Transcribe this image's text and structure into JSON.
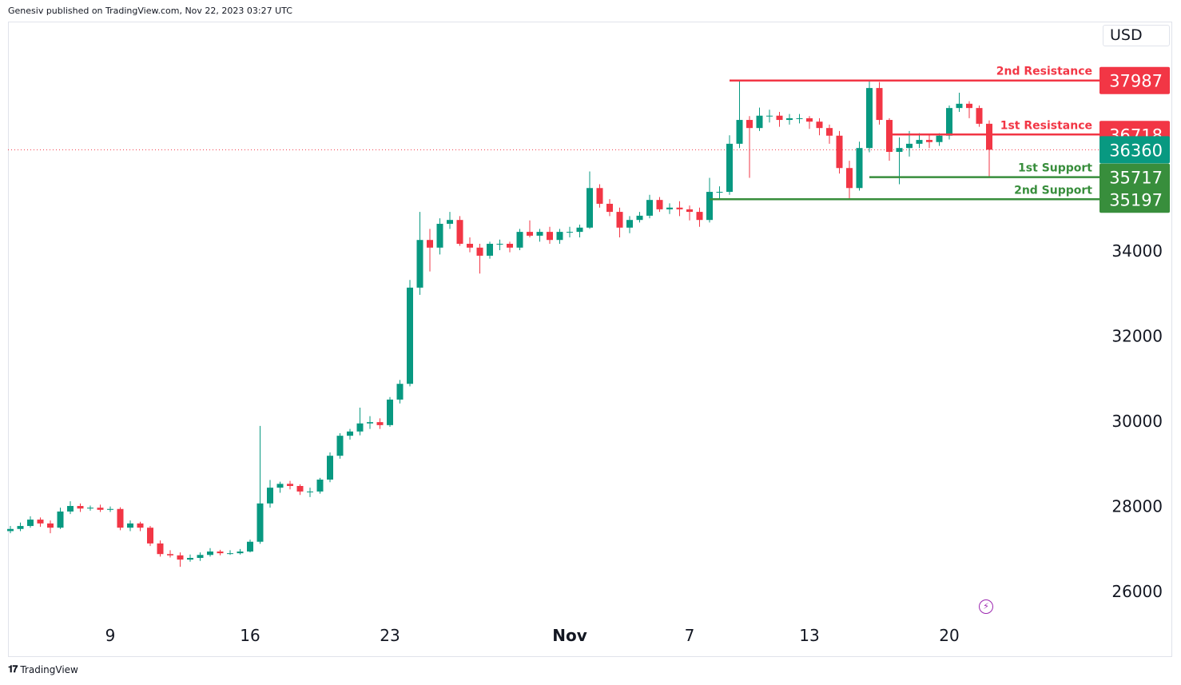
{
  "header": {
    "published": "Genesiv published on TradingView.com, Nov 22, 2023 03:27 UTC"
  },
  "currency": "USD",
  "footer": {
    "brand": "TradingView"
  },
  "colors": {
    "up": "#089981",
    "down": "#F23645",
    "resistance": "#F23645",
    "support": "#388E3C",
    "last_price": "#089981"
  },
  "chart_data": {
    "type": "candlestick",
    "x_start": "2023-10-04",
    "interval": "12h",
    "x_ticks": [
      {
        "label": "9",
        "date": "2023-10-09"
      },
      {
        "label": "16",
        "date": "2023-10-16"
      },
      {
        "label": "23",
        "date": "2023-10-23"
      },
      {
        "label": "Nov",
        "date": "2023-11-01"
      },
      {
        "label": "7",
        "date": "2023-11-07"
      },
      {
        "label": "13",
        "date": "2023-11-13"
      },
      {
        "label": "20",
        "date": "2023-11-20"
      }
    ],
    "y_ticks": [
      26000,
      28000,
      30000,
      32000,
      34000
    ],
    "ylim": [
      25000,
      38500
    ],
    "last_price": 36360,
    "levels": [
      {
        "name": "2nd Resistance",
        "value": 37987,
        "kind": "resistance",
        "from": "2023-11-09"
      },
      {
        "name": "1st Resistance",
        "value": 36718,
        "kind": "resistance",
        "from": "2023-11-17"
      },
      {
        "name": "1st Support",
        "value": 35717,
        "kind": "support",
        "from": "2023-11-16"
      },
      {
        "name": "2nd Support",
        "value": 35197,
        "kind": "support",
        "from": "2023-11-08"
      }
    ],
    "ohlc": [
      [
        27400,
        27520,
        27350,
        27450
      ],
      [
        27450,
        27600,
        27400,
        27520
      ],
      [
        27520,
        27750,
        27480,
        27670
      ],
      [
        27670,
        27720,
        27500,
        27580
      ],
      [
        27580,
        27650,
        27350,
        27480
      ],
      [
        27480,
        27950,
        27450,
        27860
      ],
      [
        27860,
        28100,
        27800,
        27990
      ],
      [
        27990,
        28050,
        27850,
        27930
      ],
      [
        27930,
        28000,
        27880,
        27950
      ],
      [
        27950,
        28020,
        27850,
        27900
      ],
      [
        27900,
        27980,
        27850,
        27920
      ],
      [
        27920,
        27960,
        27420,
        27480
      ],
      [
        27480,
        27650,
        27400,
        27580
      ],
      [
        27580,
        27620,
        27400,
        27480
      ],
      [
        27480,
        27520,
        27050,
        27110
      ],
      [
        27110,
        27180,
        26800,
        26860
      ],
      [
        26860,
        26950,
        26780,
        26830
      ],
      [
        26830,
        26900,
        26560,
        26730
      ],
      [
        26730,
        26850,
        26680,
        26770
      ],
      [
        26770,
        26900,
        26700,
        26840
      ],
      [
        26840,
        27000,
        26800,
        26920
      ],
      [
        26920,
        26960,
        26830,
        26880
      ],
      [
        26880,
        26950,
        26840,
        26880
      ],
      [
        26880,
        26980,
        26850,
        26920
      ],
      [
        26920,
        27200,
        26900,
        27150
      ],
      [
        27150,
        29870,
        27100,
        28050
      ],
      [
        28050,
        28600,
        27950,
        28420
      ],
      [
        28420,
        28560,
        28300,
        28510
      ],
      [
        28510,
        28580,
        28380,
        28460
      ],
      [
        28460,
        28500,
        28250,
        28330
      ],
      [
        28330,
        28420,
        28200,
        28330
      ],
      [
        28330,
        28650,
        28280,
        28610
      ],
      [
        28610,
        29250,
        28550,
        29170
      ],
      [
        29170,
        29700,
        29100,
        29640
      ],
      [
        29640,
        29800,
        29550,
        29740
      ],
      [
        29740,
        30300,
        29650,
        29930
      ],
      [
        29930,
        30100,
        29800,
        29960
      ],
      [
        29960,
        30050,
        29800,
        29890
      ],
      [
        29890,
        30550,
        29850,
        30490
      ],
      [
        30490,
        30950,
        30400,
        30860
      ],
      [
        30860,
        33300,
        30800,
        33120
      ],
      [
        33120,
        34900,
        32950,
        34240
      ],
      [
        34240,
        34500,
        33500,
        34060
      ],
      [
        34060,
        34750,
        33900,
        34620
      ],
      [
        34620,
        34900,
        34500,
        34710
      ],
      [
        34710,
        34800,
        34100,
        34150
      ],
      [
        34150,
        34300,
        33950,
        34060
      ],
      [
        34060,
        34150,
        33450,
        33870
      ],
      [
        33870,
        34200,
        33800,
        34150
      ],
      [
        34150,
        34250,
        34000,
        34150
      ],
      [
        34150,
        34200,
        33950,
        34060
      ],
      [
        34060,
        34500,
        34000,
        34430
      ],
      [
        34430,
        34700,
        34300,
        34340
      ],
      [
        34340,
        34500,
        34200,
        34430
      ],
      [
        34430,
        34550,
        34150,
        34240
      ],
      [
        34240,
        34500,
        34150,
        34430
      ],
      [
        34430,
        34550,
        34300,
        34430
      ],
      [
        34430,
        34600,
        34300,
        34530
      ],
      [
        34530,
        35850,
        34500,
        35460
      ],
      [
        35460,
        35550,
        35000,
        35090
      ],
      [
        35090,
        35200,
        34800,
        34900
      ],
      [
        34900,
        35000,
        34300,
        34530
      ],
      [
        34530,
        34800,
        34400,
        34710
      ],
      [
        34710,
        34900,
        34650,
        34810
      ],
      [
        34810,
        35300,
        34750,
        35180
      ],
      [
        35180,
        35250,
        34900,
        34960
      ],
      [
        34960,
        35100,
        34850,
        35000
      ],
      [
        35000,
        35150,
        34800,
        34960
      ],
      [
        34960,
        35050,
        34700,
        34900
      ],
      [
        34900,
        35000,
        34550,
        34710
      ],
      [
        34710,
        35700,
        34650,
        35370
      ],
      [
        35370,
        35500,
        35200,
        35370
      ],
      [
        35370,
        36700,
        35300,
        36500
      ],
      [
        36500,
        37987,
        36400,
        37060
      ],
      [
        37060,
        37150,
        35700,
        36870
      ],
      [
        36870,
        37350,
        36800,
        37160
      ],
      [
        37160,
        37300,
        37000,
        37160
      ],
      [
        37160,
        37250,
        36900,
        37060
      ],
      [
        37060,
        37200,
        36950,
        37100
      ],
      [
        37100,
        37200,
        36980,
        37100
      ],
      [
        37100,
        37150,
        36850,
        37020
      ],
      [
        37020,
        37100,
        36700,
        36870
      ],
      [
        36870,
        36950,
        36500,
        36690
      ],
      [
        36690,
        36800,
        35800,
        35930
      ],
      [
        35930,
        36100,
        35197,
        35460
      ],
      [
        35460,
        36550,
        35400,
        36400
      ],
      [
        36400,
        37987,
        36300,
        37810
      ],
      [
        37810,
        37950,
        36950,
        37060
      ],
      [
        37060,
        37100,
        36100,
        36310
      ],
      [
        36310,
        36650,
        35550,
        36400
      ],
      [
        36400,
        36800,
        36200,
        36500
      ],
      [
        36500,
        36750,
        36400,
        36590
      ],
      [
        36590,
        36700,
        36400,
        36540
      ],
      [
        36540,
        36750,
        36450,
        36690
      ],
      [
        36690,
        37400,
        36600,
        37340
      ],
      [
        37340,
        37700,
        37250,
        37440
      ],
      [
        37440,
        37500,
        37100,
        37340
      ],
      [
        37340,
        37400,
        36900,
        36970
      ],
      [
        36970,
        37050,
        35717,
        36360
      ]
    ]
  }
}
